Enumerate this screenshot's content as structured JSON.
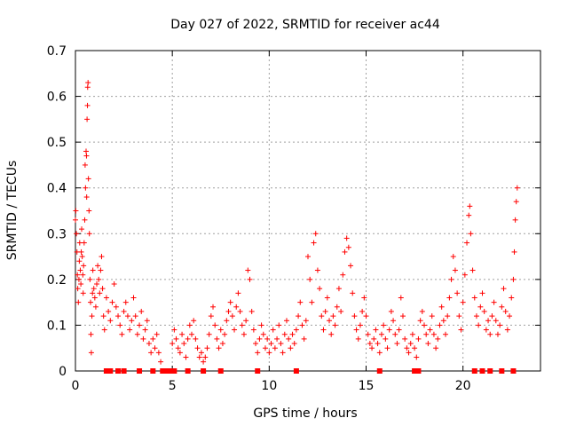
{
  "chart_data": {
    "type": "scatter",
    "title": "Day 027 of 2022, SRMTID for receiver ac44",
    "xlabel": "GPS time / hours",
    "ylabel": "SRMTID / TECUs",
    "xlim": [
      0,
      24
    ],
    "ylim": [
      0,
      0.7
    ],
    "xticks": [
      0,
      5,
      10,
      15,
      20
    ],
    "xtick_labels": [
      "0",
      "5",
      "10",
      "15",
      "20"
    ],
    "yticks": [
      0,
      0.1,
      0.2,
      0.3,
      0.4,
      0.5,
      0.6,
      0.7
    ],
    "ytick_labels": [
      "0",
      "0.1",
      "0.2",
      "0.3",
      "0.4",
      "0.5",
      "0.6",
      "0.7"
    ],
    "grid": true,
    "series": [
      {
        "name": "SRMTID",
        "marker": "+",
        "color": "#ff0000",
        "points": [
          [
            0.0,
            0.33
          ],
          [
            0.02,
            0.35
          ],
          [
            0.05,
            0.3
          ],
          [
            0.08,
            0.26
          ],
          [
            0.1,
            0.21
          ],
          [
            0.12,
            0.18
          ],
          [
            0.15,
            0.15
          ],
          [
            0.18,
            0.2
          ],
          [
            0.2,
            0.24
          ],
          [
            0.22,
            0.28
          ],
          [
            0.25,
            0.22
          ],
          [
            0.28,
            0.19
          ],
          [
            0.3,
            0.26
          ],
          [
            0.32,
            0.31
          ],
          [
            0.35,
            0.25
          ],
          [
            0.38,
            0.21
          ],
          [
            0.4,
            0.17
          ],
          [
            0.42,
            0.23
          ],
          [
            0.45,
            0.28
          ],
          [
            0.48,
            0.33
          ],
          [
            0.5,
            0.45
          ],
          [
            0.52,
            0.4
          ],
          [
            0.55,
            0.48
          ],
          [
            0.57,
            0.47
          ],
          [
            0.58,
            0.38
          ],
          [
            0.6,
            0.55
          ],
          [
            0.62,
            0.58
          ],
          [
            0.63,
            0.62
          ],
          [
            0.65,
            0.63
          ],
          [
            0.67,
            0.42
          ],
          [
            0.7,
            0.35
          ],
          [
            0.72,
            0.3
          ],
          [
            0.75,
            0.2
          ],
          [
            0.78,
            0.15
          ],
          [
            0.8,
            0.08
          ],
          [
            0.82,
            0.04
          ],
          [
            0.85,
            0.12
          ],
          [
            0.88,
            0.17
          ],
          [
            0.9,
            0.22
          ],
          [
            0.95,
            0.18
          ],
          [
            1.0,
            0.16
          ],
          [
            1.05,
            0.14
          ],
          [
            1.1,
            0.19
          ],
          [
            1.15,
            0.23
          ],
          [
            1.2,
            0.2
          ],
          [
            1.25,
            0.17
          ],
          [
            1.3,
            0.22
          ],
          [
            1.35,
            0.25
          ],
          [
            1.4,
            0.18
          ],
          [
            1.45,
            0.12
          ],
          [
            1.5,
            0.09
          ],
          [
            1.6,
            0.16
          ],
          [
            1.7,
            0.13
          ],
          [
            1.8,
            0.11
          ],
          [
            1.9,
            0.15
          ],
          [
            2.0,
            0.19
          ],
          [
            2.1,
            0.14
          ],
          [
            2.2,
            0.12
          ],
          [
            2.3,
            0.1
          ],
          [
            2.4,
            0.08
          ],
          [
            2.5,
            0.13
          ],
          [
            2.6,
            0.15
          ],
          [
            2.7,
            0.12
          ],
          [
            2.8,
            0.09
          ],
          [
            2.9,
            0.11
          ],
          [
            3.0,
            0.16
          ],
          [
            3.1,
            0.12
          ],
          [
            3.2,
            0.08
          ],
          [
            3.3,
            0.1
          ],
          [
            3.4,
            0.13
          ],
          [
            3.5,
            0.07
          ],
          [
            3.6,
            0.09
          ],
          [
            3.7,
            0.11
          ],
          [
            3.8,
            0.06
          ],
          [
            3.9,
            0.04
          ],
          [
            4.0,
            0.07
          ],
          [
            4.1,
            0.05
          ],
          [
            4.2,
            0.08
          ],
          [
            4.3,
            0.04
          ],
          [
            4.4,
            0.02
          ],
          [
            5.0,
            0.06
          ],
          [
            5.1,
            0.09
          ],
          [
            5.2,
            0.07
          ],
          [
            5.3,
            0.05
          ],
          [
            5.4,
            0.04
          ],
          [
            5.5,
            0.08
          ],
          [
            5.6,
            0.06
          ],
          [
            5.7,
            0.03
          ],
          [
            5.8,
            0.07
          ],
          [
            5.9,
            0.1
          ],
          [
            6.0,
            0.08
          ],
          [
            6.1,
            0.11
          ],
          [
            6.2,
            0.07
          ],
          [
            6.3,
            0.05
          ],
          [
            6.4,
            0.03
          ],
          [
            6.5,
            0.04
          ],
          [
            6.6,
            0.02
          ],
          [
            6.7,
            0.03
          ],
          [
            6.8,
            0.05
          ],
          [
            6.9,
            0.08
          ],
          [
            7.0,
            0.12
          ],
          [
            7.1,
            0.14
          ],
          [
            7.2,
            0.1
          ],
          [
            7.3,
            0.07
          ],
          [
            7.4,
            0.05
          ],
          [
            7.5,
            0.09
          ],
          [
            7.6,
            0.06
          ],
          [
            7.7,
            0.08
          ],
          [
            7.8,
            0.11
          ],
          [
            7.9,
            0.13
          ],
          [
            8.0,
            0.15
          ],
          [
            8.1,
            0.12
          ],
          [
            8.2,
            0.09
          ],
          [
            8.3,
            0.14
          ],
          [
            8.4,
            0.17
          ],
          [
            8.5,
            0.13
          ],
          [
            8.6,
            0.1
          ],
          [
            8.7,
            0.08
          ],
          [
            8.8,
            0.11
          ],
          [
            8.9,
            0.22
          ],
          [
            9.0,
            0.2
          ],
          [
            9.1,
            0.13
          ],
          [
            9.2,
            0.09
          ],
          [
            9.3,
            0.06
          ],
          [
            9.4,
            0.04
          ],
          [
            9.5,
            0.07
          ],
          [
            9.6,
            0.1
          ],
          [
            9.7,
            0.08
          ],
          [
            9.8,
            0.05
          ],
          [
            9.9,
            0.07
          ],
          [
            10.0,
            0.04
          ],
          [
            10.1,
            0.06
          ],
          [
            10.2,
            0.09
          ],
          [
            10.3,
            0.05
          ],
          [
            10.4,
            0.07
          ],
          [
            10.5,
            0.1
          ],
          [
            10.6,
            0.06
          ],
          [
            10.7,
            0.04
          ],
          [
            10.8,
            0.08
          ],
          [
            10.9,
            0.11
          ],
          [
            11.0,
            0.07
          ],
          [
            11.1,
            0.05
          ],
          [
            11.2,
            0.08
          ],
          [
            11.3,
            0.06
          ],
          [
            11.4,
            0.09
          ],
          [
            11.5,
            0.12
          ],
          [
            11.6,
            0.15
          ],
          [
            11.7,
            0.1
          ],
          [
            11.8,
            0.07
          ],
          [
            11.9,
            0.11
          ],
          [
            12.0,
            0.25
          ],
          [
            12.1,
            0.2
          ],
          [
            12.2,
            0.15
          ],
          [
            12.3,
            0.28
          ],
          [
            12.4,
            0.3
          ],
          [
            12.5,
            0.22
          ],
          [
            12.6,
            0.18
          ],
          [
            12.7,
            0.12
          ],
          [
            12.8,
            0.09
          ],
          [
            12.9,
            0.13
          ],
          [
            13.0,
            0.16
          ],
          [
            13.1,
            0.11
          ],
          [
            13.2,
            0.08
          ],
          [
            13.3,
            0.12
          ],
          [
            13.4,
            0.1
          ],
          [
            13.5,
            0.14
          ],
          [
            13.6,
            0.18
          ],
          [
            13.7,
            0.13
          ],
          [
            13.8,
            0.21
          ],
          [
            13.9,
            0.26
          ],
          [
            14.0,
            0.29
          ],
          [
            14.1,
            0.27
          ],
          [
            14.2,
            0.23
          ],
          [
            14.3,
            0.17
          ],
          [
            14.4,
            0.12
          ],
          [
            14.5,
            0.09
          ],
          [
            14.6,
            0.07
          ],
          [
            14.7,
            0.1
          ],
          [
            14.8,
            0.13
          ],
          [
            14.9,
            0.16
          ],
          [
            15.0,
            0.12
          ],
          [
            15.1,
            0.08
          ],
          [
            15.2,
            0.06
          ],
          [
            15.3,
            0.05
          ],
          [
            15.4,
            0.07
          ],
          [
            15.5,
            0.09
          ],
          [
            15.6,
            0.06
          ],
          [
            15.7,
            0.04
          ],
          [
            15.8,
            0.08
          ],
          [
            15.9,
            0.1
          ],
          [
            16.0,
            0.07
          ],
          [
            16.1,
            0.05
          ],
          [
            16.2,
            0.09
          ],
          [
            16.3,
            0.13
          ],
          [
            16.4,
            0.11
          ],
          [
            16.5,
            0.08
          ],
          [
            16.6,
            0.06
          ],
          [
            16.7,
            0.09
          ],
          [
            16.8,
            0.16
          ],
          [
            16.9,
            0.12
          ],
          [
            17.0,
            0.07
          ],
          [
            17.1,
            0.05
          ],
          [
            17.2,
            0.04
          ],
          [
            17.3,
            0.06
          ],
          [
            17.4,
            0.08
          ],
          [
            17.5,
            0.05
          ],
          [
            17.6,
            0.03
          ],
          [
            17.7,
            0.07
          ],
          [
            17.8,
            0.11
          ],
          [
            17.9,
            0.13
          ],
          [
            18.0,
            0.1
          ],
          [
            18.1,
            0.08
          ],
          [
            18.2,
            0.06
          ],
          [
            18.3,
            0.09
          ],
          [
            18.4,
            0.12
          ],
          [
            18.5,
            0.08
          ],
          [
            18.6,
            0.05
          ],
          [
            18.7,
            0.07
          ],
          [
            18.8,
            0.1
          ],
          [
            18.9,
            0.14
          ],
          [
            19.0,
            0.11
          ],
          [
            19.1,
            0.08
          ],
          [
            19.2,
            0.12
          ],
          [
            19.3,
            0.16
          ],
          [
            19.4,
            0.2
          ],
          [
            19.5,
            0.25
          ],
          [
            19.6,
            0.22
          ],
          [
            19.7,
            0.17
          ],
          [
            19.8,
            0.12
          ],
          [
            19.9,
            0.09
          ],
          [
            20.0,
            0.15
          ],
          [
            20.1,
            0.21
          ],
          [
            20.2,
            0.28
          ],
          [
            20.3,
            0.34
          ],
          [
            20.35,
            0.36
          ],
          [
            20.4,
            0.3
          ],
          [
            20.5,
            0.22
          ],
          [
            20.6,
            0.16
          ],
          [
            20.7,
            0.12
          ],
          [
            20.8,
            0.1
          ],
          [
            20.9,
            0.14
          ],
          [
            21.0,
            0.17
          ],
          [
            21.1,
            0.13
          ],
          [
            21.2,
            0.09
          ],
          [
            21.3,
            0.11
          ],
          [
            21.4,
            0.08
          ],
          [
            21.5,
            0.12
          ],
          [
            21.6,
            0.15
          ],
          [
            21.7,
            0.11
          ],
          [
            21.8,
            0.08
          ],
          [
            21.9,
            0.1
          ],
          [
            22.0,
            0.14
          ],
          [
            22.1,
            0.18
          ],
          [
            22.2,
            0.13
          ],
          [
            22.3,
            0.09
          ],
          [
            22.4,
            0.12
          ],
          [
            22.5,
            0.16
          ],
          [
            22.6,
            0.2
          ],
          [
            22.65,
            0.26
          ],
          [
            22.7,
            0.33
          ],
          [
            22.75,
            0.37
          ],
          [
            22.8,
            0.4
          ]
        ]
      }
    ],
    "zero_points": [
      1.6,
      1.8,
      2.2,
      2.5,
      3.3,
      4.0,
      4.5,
      4.6,
      4.7,
      4.8,
      4.9,
      5.1,
      5.8,
      6.6,
      7.5,
      9.4,
      11.4,
      15.7,
      17.5,
      17.6,
      17.7,
      20.6,
      21.0,
      21.4,
      22.0,
      22.6
    ]
  }
}
